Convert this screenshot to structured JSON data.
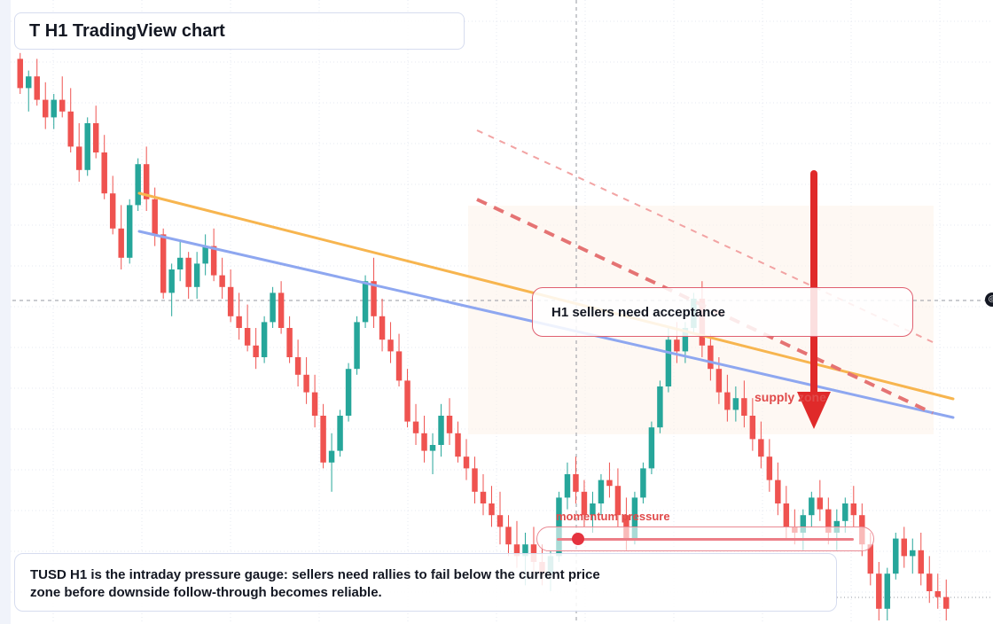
{
  "title": "T H1 TradingView chart",
  "callout": "H1 sellers need acceptance",
  "zone_label": "supply zone",
  "gauge": {
    "label": "momentum pressure",
    "level": 0.07
  },
  "caption": {
    "line1": "TUSD H1 is the intraday pressure gauge: sellers need rallies to fail below the current price",
    "line2": "zone before downside follow-through becomes reliable."
  },
  "edge_icon": "target-icon",
  "colors": {
    "up": "#26a69a",
    "down": "#ef5350",
    "trend_orange": "#f7b54f",
    "trend_blue": "#8ea7f0",
    "arrow": "#e02a2a",
    "zone_fill": "#fdf2ea"
  },
  "chart_data": {
    "type": "candlestick",
    "title": "",
    "xlabel": "",
    "ylabel": "",
    "grid": true,
    "ylim": [
      0,
      100
    ],
    "candles": [
      {
        "o": 96,
        "h": 97,
        "l": 90,
        "c": 91
      },
      {
        "o": 91,
        "h": 94,
        "l": 87,
        "c": 93
      },
      {
        "o": 93,
        "h": 96,
        "l": 88,
        "c": 89
      },
      {
        "o": 89,
        "h": 92,
        "l": 84,
        "c": 86
      },
      {
        "o": 86,
        "h": 90,
        "l": 84,
        "c": 89
      },
      {
        "o": 89,
        "h": 93,
        "l": 86,
        "c": 87
      },
      {
        "o": 87,
        "h": 91,
        "l": 80,
        "c": 81
      },
      {
        "o": 81,
        "h": 85,
        "l": 75,
        "c": 77
      },
      {
        "o": 77,
        "h": 86,
        "l": 76,
        "c": 85
      },
      {
        "o": 85,
        "h": 88,
        "l": 79,
        "c": 80
      },
      {
        "o": 80,
        "h": 83,
        "l": 72,
        "c": 73
      },
      {
        "o": 73,
        "h": 76,
        "l": 66,
        "c": 67
      },
      {
        "o": 67,
        "h": 71,
        "l": 60,
        "c": 62
      },
      {
        "o": 62,
        "h": 72,
        "l": 61,
        "c": 71
      },
      {
        "o": 71,
        "h": 79,
        "l": 70,
        "c": 78
      },
      {
        "o": 78,
        "h": 81,
        "l": 70,
        "c": 72
      },
      {
        "o": 72,
        "h": 74,
        "l": 64,
        "c": 66
      },
      {
        "o": 66,
        "h": 67,
        "l": 55,
        "c": 56
      },
      {
        "o": 56,
        "h": 61,
        "l": 52,
        "c": 60
      },
      {
        "o": 60,
        "h": 65,
        "l": 58,
        "c": 62
      },
      {
        "o": 62,
        "h": 63,
        "l": 55,
        "c": 57
      },
      {
        "o": 57,
        "h": 63,
        "l": 55,
        "c": 61
      },
      {
        "o": 61,
        "h": 66,
        "l": 59,
        "c": 64
      },
      {
        "o": 64,
        "h": 67,
        "l": 58,
        "c": 59
      },
      {
        "o": 59,
        "h": 62,
        "l": 55,
        "c": 57
      },
      {
        "o": 57,
        "h": 60,
        "l": 51,
        "c": 52
      },
      {
        "o": 52,
        "h": 56,
        "l": 48,
        "c": 50
      },
      {
        "o": 50,
        "h": 54,
        "l": 46,
        "c": 47
      },
      {
        "o": 47,
        "h": 50,
        "l": 43,
        "c": 45
      },
      {
        "o": 45,
        "h": 52,
        "l": 44,
        "c": 51
      },
      {
        "o": 51,
        "h": 57,
        "l": 50,
        "c": 56
      },
      {
        "o": 56,
        "h": 58,
        "l": 49,
        "c": 50
      },
      {
        "o": 50,
        "h": 52,
        "l": 44,
        "c": 45
      },
      {
        "o": 45,
        "h": 48,
        "l": 40,
        "c": 42
      },
      {
        "o": 42,
        "h": 45,
        "l": 37,
        "c": 39
      },
      {
        "o": 39,
        "h": 42,
        "l": 33,
        "c": 35
      },
      {
        "o": 35,
        "h": 37,
        "l": 26,
        "c": 27
      },
      {
        "o": 27,
        "h": 32,
        "l": 22,
        "c": 29
      },
      {
        "o": 29,
        "h": 36,
        "l": 28,
        "c": 35
      },
      {
        "o": 35,
        "h": 44,
        "l": 34,
        "c": 43
      },
      {
        "o": 43,
        "h": 52,
        "l": 42,
        "c": 51
      },
      {
        "o": 51,
        "h": 59,
        "l": 50,
        "c": 58
      },
      {
        "o": 58,
        "h": 62,
        "l": 50,
        "c": 52
      },
      {
        "o": 52,
        "h": 55,
        "l": 46,
        "c": 48
      },
      {
        "o": 48,
        "h": 51,
        "l": 44,
        "c": 46
      },
      {
        "o": 46,
        "h": 49,
        "l": 40,
        "c": 41
      },
      {
        "o": 41,
        "h": 43,
        "l": 33,
        "c": 34
      },
      {
        "o": 34,
        "h": 37,
        "l": 30,
        "c": 32
      },
      {
        "o": 32,
        "h": 35,
        "l": 27,
        "c": 29
      },
      {
        "o": 29,
        "h": 32,
        "l": 25,
        "c": 30
      },
      {
        "o": 30,
        "h": 37,
        "l": 28,
        "c": 35
      },
      {
        "o": 35,
        "h": 38,
        "l": 30,
        "c": 32
      },
      {
        "o": 32,
        "h": 34,
        "l": 27,
        "c": 28
      },
      {
        "o": 28,
        "h": 31,
        "l": 24,
        "c": 26
      },
      {
        "o": 26,
        "h": 28,
        "l": 20,
        "c": 22
      },
      {
        "o": 22,
        "h": 25,
        "l": 18,
        "c": 20
      },
      {
        "o": 20,
        "h": 23,
        "l": 16,
        "c": 18
      },
      {
        "o": 18,
        "h": 22,
        "l": 13,
        "c": 16
      },
      {
        "o": 16,
        "h": 18,
        "l": 11,
        "c": 13
      },
      {
        "o": 13,
        "h": 17,
        "l": 9,
        "c": 11
      },
      {
        "o": 11,
        "h": 15,
        "l": 6,
        "c": 13
      },
      {
        "o": 13,
        "h": 16,
        "l": 8,
        "c": 10
      },
      {
        "o": 10,
        "h": 13,
        "l": 6,
        "c": 8
      },
      {
        "o": 8,
        "h": 12,
        "l": 5,
        "c": 11
      },
      {
        "o": 11,
        "h": 22,
        "l": 10,
        "c": 21
      },
      {
        "o": 21,
        "h": 27,
        "l": 19,
        "c": 25
      },
      {
        "o": 25,
        "h": 28,
        "l": 20,
        "c": 22
      },
      {
        "o": 22,
        "h": 24,
        "l": 16,
        "c": 18
      },
      {
        "o": 18,
        "h": 22,
        "l": 15,
        "c": 20
      },
      {
        "o": 20,
        "h": 25,
        "l": 18,
        "c": 24
      },
      {
        "o": 24,
        "h": 27,
        "l": 21,
        "c": 23
      },
      {
        "o": 23,
        "h": 26,
        "l": 16,
        "c": 18
      },
      {
        "o": 18,
        "h": 21,
        "l": 12,
        "c": 14
      },
      {
        "o": 14,
        "h": 22,
        "l": 13,
        "c": 21
      },
      {
        "o": 21,
        "h": 27,
        "l": 20,
        "c": 26
      },
      {
        "o": 26,
        "h": 34,
        "l": 25,
        "c": 33
      },
      {
        "o": 33,
        "h": 41,
        "l": 32,
        "c": 40
      },
      {
        "o": 40,
        "h": 50,
        "l": 39,
        "c": 48
      },
      {
        "o": 48,
        "h": 51,
        "l": 44,
        "c": 46
      },
      {
        "o": 46,
        "h": 51,
        "l": 44,
        "c": 50
      },
      {
        "o": 50,
        "h": 56,
        "l": 49,
        "c": 55
      },
      {
        "o": 55,
        "h": 58,
        "l": 45,
        "c": 47
      },
      {
        "o": 47,
        "h": 49,
        "l": 41,
        "c": 43
      },
      {
        "o": 43,
        "h": 45,
        "l": 37,
        "c": 39
      },
      {
        "o": 39,
        "h": 42,
        "l": 34,
        "c": 36
      },
      {
        "o": 36,
        "h": 40,
        "l": 34,
        "c": 38
      },
      {
        "o": 38,
        "h": 41,
        "l": 33,
        "c": 35
      },
      {
        "o": 35,
        "h": 38,
        "l": 29,
        "c": 31
      },
      {
        "o": 31,
        "h": 34,
        "l": 26,
        "c": 28
      },
      {
        "o": 28,
        "h": 31,
        "l": 22,
        "c": 24
      },
      {
        "o": 24,
        "h": 27,
        "l": 18,
        "c": 20
      },
      {
        "o": 20,
        "h": 23,
        "l": 14,
        "c": 16
      },
      {
        "o": 16,
        "h": 19,
        "l": 13,
        "c": 15
      },
      {
        "o": 15,
        "h": 19,
        "l": 12,
        "c": 18
      },
      {
        "o": 18,
        "h": 22,
        "l": 16,
        "c": 21
      },
      {
        "o": 21,
        "h": 24,
        "l": 17,
        "c": 19
      },
      {
        "o": 19,
        "h": 21,
        "l": 13,
        "c": 15
      },
      {
        "o": 15,
        "h": 19,
        "l": 12,
        "c": 17
      },
      {
        "o": 17,
        "h": 21,
        "l": 15,
        "c": 20
      },
      {
        "o": 20,
        "h": 23,
        "l": 16,
        "c": 18
      },
      {
        "o": 18,
        "h": 20,
        "l": 11,
        "c": 13
      },
      {
        "o": 13,
        "h": 15,
        "l": 6,
        "c": 8
      },
      {
        "o": 8,
        "h": 10,
        "l": 0,
        "c": 2
      },
      {
        "o": 2,
        "h": 9,
        "l": 0,
        "c": 8
      },
      {
        "o": 8,
        "h": 15,
        "l": 7,
        "c": 14
      },
      {
        "o": 14,
        "h": 16,
        "l": 9,
        "c": 11
      },
      {
        "o": 11,
        "h": 14,
        "l": 8,
        "c": 12
      },
      {
        "o": 12,
        "h": 15,
        "l": 6,
        "c": 8
      },
      {
        "o": 8,
        "h": 11,
        "l": 3,
        "c": 5
      },
      {
        "o": 5,
        "h": 8,
        "l": 2,
        "c": 4
      },
      {
        "o": 4,
        "h": 7,
        "l": 0,
        "c": 2
      }
    ],
    "trendlines": [
      {
        "color": "trend_orange",
        "from": [
          28,
          82
        ],
        "to": [
          210,
          44
        ]
      },
      {
        "color": "trend_blue",
        "from": [
          28,
          74
        ],
        "to": [
          210,
          41
        ]
      }
    ]
  }
}
